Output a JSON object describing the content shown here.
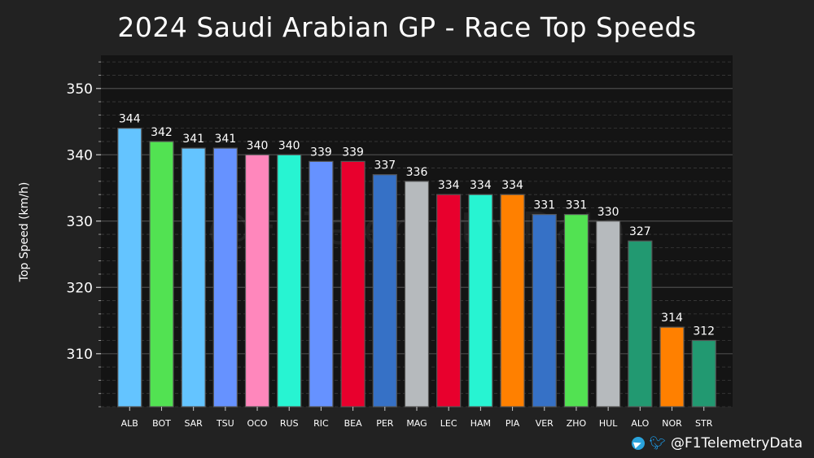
{
  "chart_data": {
    "type": "bar",
    "title": "2024 Saudi Arabian GP - Race Top Speeds",
    "xlabel": "",
    "ylabel": "Top Speed (km/h)",
    "ylim": [
      302,
      355
    ],
    "yticks": [
      310,
      320,
      330,
      340,
      350
    ],
    "categories": [
      "ALB",
      "BOT",
      "SAR",
      "TSU",
      "OCO",
      "RUS",
      "RIC",
      "BEA",
      "PER",
      "MAG",
      "LEC",
      "HAM",
      "PIA",
      "VER",
      "ZHO",
      "HUL",
      "ALO",
      "NOR",
      "STR"
    ],
    "values": [
      344,
      342,
      341,
      341,
      340,
      340,
      339,
      339,
      337,
      336,
      334,
      334,
      334,
      331,
      331,
      330,
      327,
      314,
      312
    ],
    "colors": [
      "#64c4ff",
      "#52e252",
      "#64c4ff",
      "#6692ff",
      "#ff87bc",
      "#27f4d2",
      "#6692ff",
      "#e8002d",
      "#3671c6",
      "#b6babd",
      "#e8002d",
      "#27f4d2",
      "#ff8000",
      "#3671c6",
      "#52e252",
      "#b6babd",
      "#229971",
      "#ff8000",
      "#229971"
    ],
    "watermark": "@F1TelemetryData"
  },
  "footer": {
    "handle": "@F1TelemetryData",
    "telegram_icon": "telegram-icon",
    "twitter_icon": "twitter-icon"
  }
}
